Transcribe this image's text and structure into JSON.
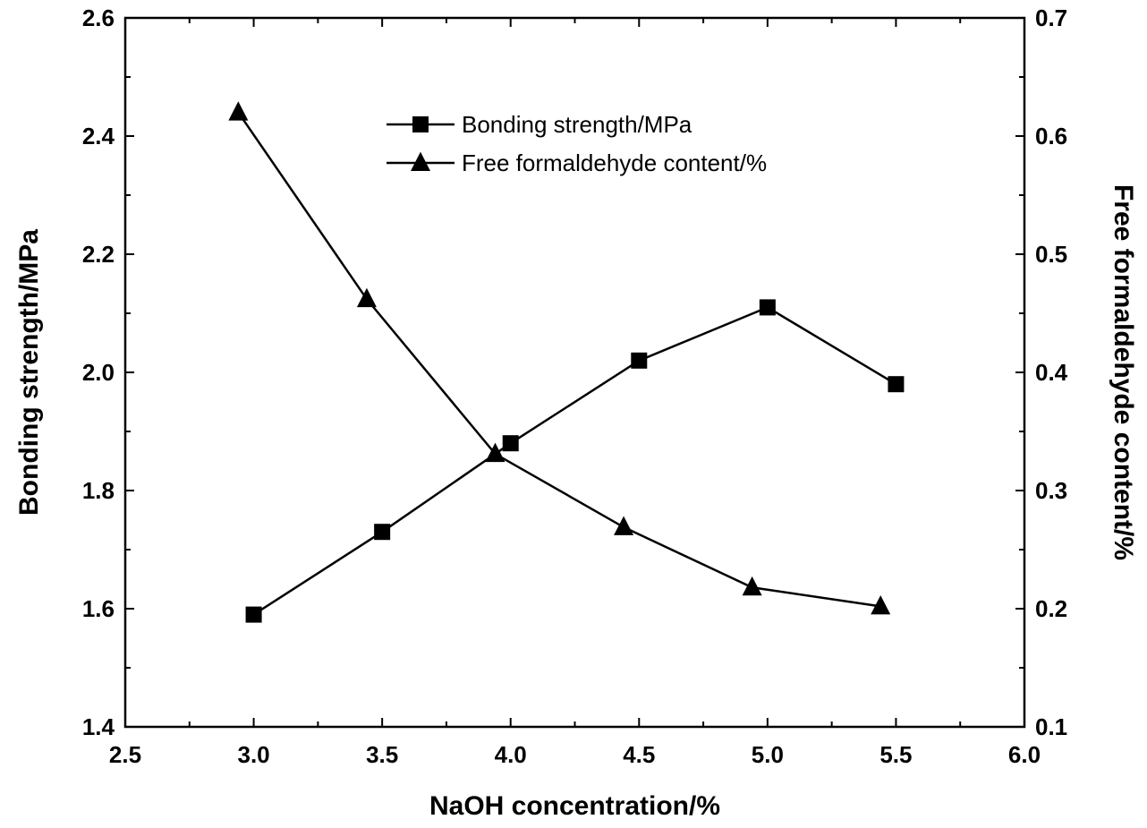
{
  "chart_data": {
    "type": "line",
    "xlabel": "NaOH concentration/%",
    "ylabel_left": "Bonding strength/MPa",
    "ylabel_right": "Free formaldehyde content/%",
    "xlim": [
      2.5,
      6.0
    ],
    "ylim_left": [
      1.4,
      2.6
    ],
    "ylim_right": [
      0.1,
      0.7
    ],
    "x_ticks": [
      "2.5",
      "3.0",
      "3.5",
      "4.0",
      "4.5",
      "5.0",
      "5.5",
      "6.0"
    ],
    "y_left_ticks": [
      "1.4",
      "1.6",
      "1.8",
      "2.0",
      "2.2",
      "2.4",
      "2.6"
    ],
    "y_right_ticks": [
      "0.1",
      "0.2",
      "0.3",
      "0.4",
      "0.5",
      "0.6",
      "0.7"
    ],
    "grid": false,
    "legend_position": "top-center",
    "series": [
      {
        "name": "Bonding strength/MPa",
        "axis": "left",
        "marker": "square",
        "x": [
          3.0,
          3.5,
          4.0,
          4.5,
          5.0,
          5.5
        ],
        "values": [
          1.59,
          1.73,
          1.88,
          2.02,
          2.11,
          1.98
        ]
      },
      {
        "name": "Free formaldehyde content/%",
        "axis": "right",
        "marker": "triangle",
        "x": [
          2.94,
          3.44,
          3.94,
          4.44,
          4.94,
          5.44
        ],
        "values": [
          0.62,
          0.462,
          0.331,
          0.269,
          0.218,
          0.202
        ]
      }
    ]
  }
}
